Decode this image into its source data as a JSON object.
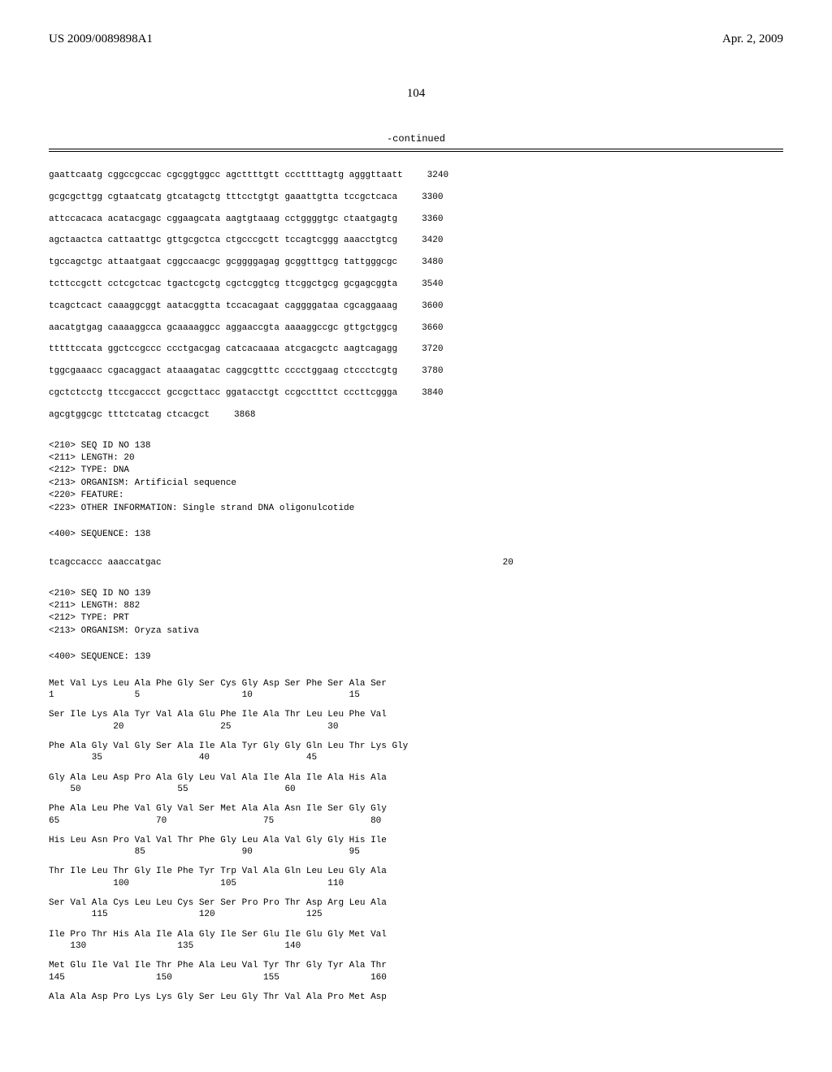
{
  "header": {
    "left": "US 2009/0089898A1",
    "right": "Apr. 2, 2009"
  },
  "page_number": "104",
  "continued": "-continued",
  "dna_sequence": {
    "lines": [
      {
        "text": "gaattcaatg cggccgccac cgcggtggcc agcttttgtt cccttttagtg agggttaatt",
        "num": "3240"
      },
      {
        "text": "gcgcgcttgg cgtaatcatg gtcatagctg tttcctgtgt gaaattgtta tccgctcaca",
        "num": "3300"
      },
      {
        "text": "attccacaca acatacgagc cggaagcata aagtgtaaag cctggggtgc ctaatgagtg",
        "num": "3360"
      },
      {
        "text": "agctaactca cattaattgc gttgcgctca ctgcccgctt tccagtcggg aaacctgtcg",
        "num": "3420"
      },
      {
        "text": "tgccagctgc attaatgaat cggccaacgc gcggggagag gcggtttgcg tattgggcgc",
        "num": "3480"
      },
      {
        "text": "tcttccgctt cctcgctcac tgactcgctg cgctcggtcg ttcggctgcg gcgagcggta",
        "num": "3540"
      },
      {
        "text": "tcagctcact caaaggcggt aatacggtta tccacagaat caggggataa cgcaggaaag",
        "num": "3600"
      },
      {
        "text": "aacatgtgag caaaaggcca gcaaaaggcc aggaaccgta aaaaggccgc gttgctggcg",
        "num": "3660"
      },
      {
        "text": "tttttccata ggctccgccc ccctgacgag catcacaaaa atcgacgctc aagtcagagg",
        "num": "3720"
      },
      {
        "text": "tggcgaaacc cgacaggact ataaagatac caggcgtttc cccctggaag ctccctcgtg",
        "num": "3780"
      },
      {
        "text": "cgctctcctg ttccgaccct gccgcttacc ggatacctgt ccgcctttct cccttcggga",
        "num": "3840"
      },
      {
        "text": "agcgtggcgc tttctcatag ctcacgct",
        "num": "3868"
      }
    ]
  },
  "metadata_138": [
    "<210> SEQ ID NO 138",
    "<211> LENGTH: 20",
    "<212> TYPE: DNA",
    "<213> ORGANISM: Artificial sequence",
    "<220> FEATURE:",
    "<223> OTHER INFORMATION: Single strand DNA oligonulcotide"
  ],
  "sequence_138_label": "<400> SEQUENCE: 138",
  "sequence_138": {
    "text": "tcagccaccc aaaccatgac",
    "num": "20"
  },
  "metadata_139": [
    "<210> SEQ ID NO 139",
    "<211> LENGTH: 882",
    "<212> TYPE: PRT",
    "<213> ORGANISM: Oryza sativa"
  ],
  "sequence_139_label": "<400> SEQUENCE: 139",
  "protein_sequence": [
    {
      "aa": "Met Val Lys Leu Ala Phe Gly Ser Cys Gly Asp Ser Phe Ser Ala Ser",
      "pos": "1               5                   10                  15"
    },
    {
      "aa": "Ser Ile Lys Ala Tyr Val Ala Glu Phe Ile Ala Thr Leu Leu Phe Val",
      "pos": "            20                  25                  30"
    },
    {
      "aa": "Phe Ala Gly Val Gly Ser Ala Ile Ala Tyr Gly Gly Gln Leu Thr Lys Gly",
      "pos": "        35                  40                  45"
    },
    {
      "aa": "Gly Ala Leu Asp Pro Ala Gly Leu Val Ala Ile Ala Ile Ala His Ala",
      "pos": "    50                  55                  60"
    },
    {
      "aa": "Phe Ala Leu Phe Val Gly Val Ser Met Ala Ala Asn Ile Ser Gly Gly",
      "pos": "65                  70                  75                  80"
    },
    {
      "aa": "His Leu Asn Pro Val Val Thr Phe Gly Leu Ala Val Gly Gly His Ile",
      "pos": "                85                  90                  95"
    },
    {
      "aa": "Thr Ile Leu Thr Gly Ile Phe Tyr Trp Val Ala Gln Leu Leu Gly Ala",
      "pos": "            100                 105                 110"
    },
    {
      "aa": "Ser Val Ala Cys Leu Leu Cys Ser Ser Pro Pro Thr Asp Arg Leu Ala",
      "pos": "        115                 120                 125"
    },
    {
      "aa": "Ile Pro Thr His Ala Ile Ala Gly Ile Ser Glu Ile Glu Gly Met Val",
      "pos": "    130                 135                 140"
    },
    {
      "aa": "Met Glu Ile Val Ile Thr Phe Ala Leu Val Tyr Thr Gly Tyr Ala Thr",
      "pos": "145                 150                 155                 160"
    },
    {
      "aa": "Ala Ala Asp Pro Lys Lys Gly Ser Leu Gly Thr Val Ala Pro Met Asp",
      "pos": ""
    }
  ]
}
